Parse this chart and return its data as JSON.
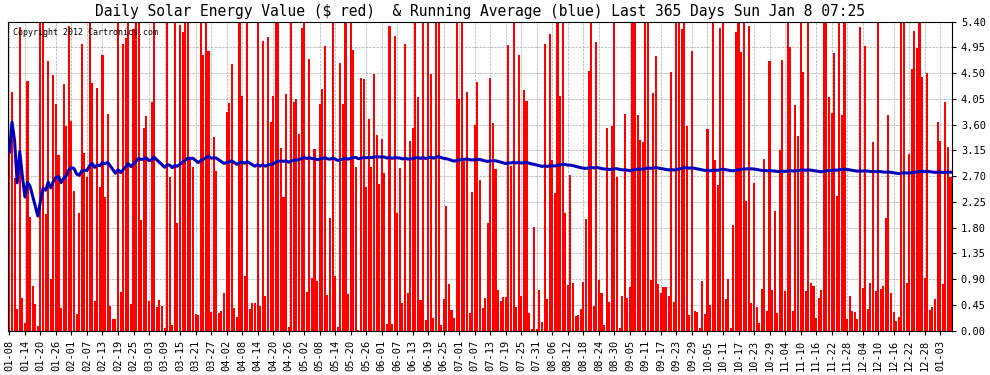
{
  "title": "Daily Solar Energy Value ($ red)  & Running Average (blue) Last 365 Days Sun Jan 8 07:25",
  "copyright_text": "Copyright 2012 Cartronics.com",
  "bar_color": "#ff0000",
  "avg_color": "#0000bb",
  "background_color": "#ffffff",
  "plot_bg_color": "#ffffff",
  "grid_color": "#aaaaaa",
  "ylim": [
    0,
    5.4
  ],
  "yticks": [
    0.0,
    0.45,
    0.9,
    1.35,
    1.8,
    2.25,
    2.7,
    3.15,
    3.6,
    4.05,
    4.5,
    4.95,
    5.4
  ],
  "title_fontsize": 10.5,
  "tick_fontsize": 7.5,
  "avg_linewidth": 2.2,
  "bar_width": 0.8,
  "n_days": 365
}
